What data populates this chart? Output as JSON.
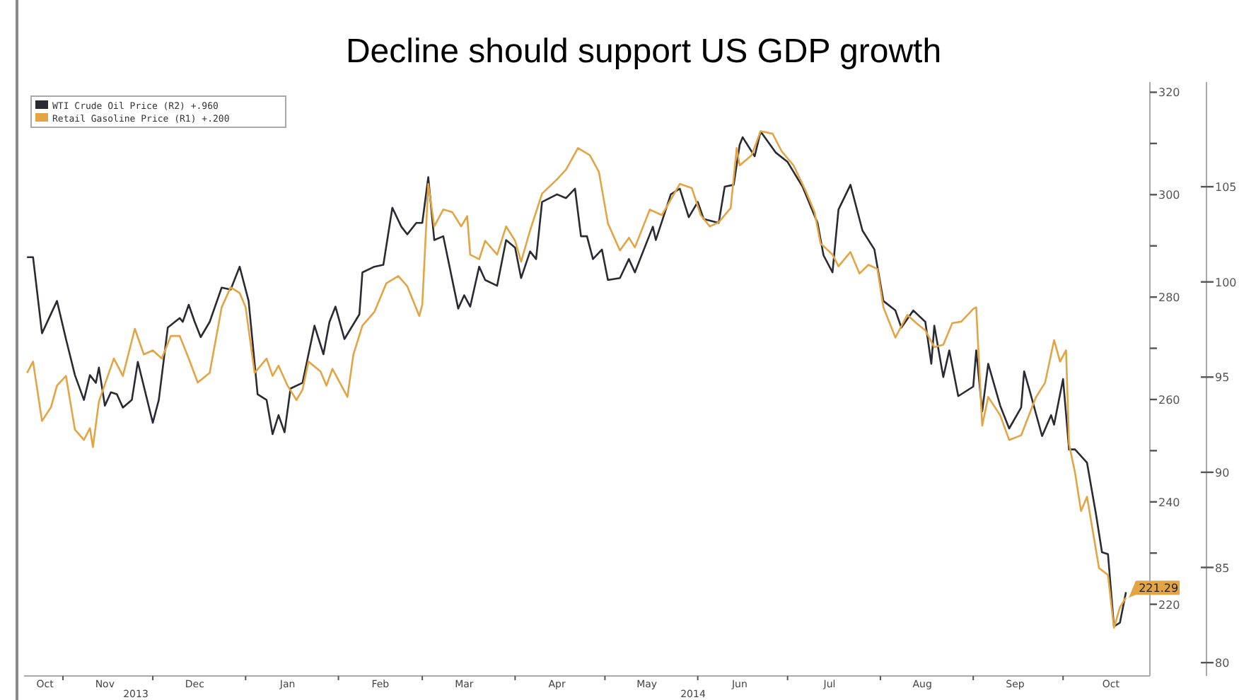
{
  "chart_data": {
    "type": "line",
    "title": "Decline should support US GDP growth",
    "xlim": [
      "2013-10-19",
      "2014-10-30"
    ],
    "xticks": [
      {
        "value": "2013-10-26",
        "label": "Oct"
      },
      {
        "value": "2013-11-01",
        "label": null
      },
      {
        "value": "2013-11-15",
        "label": "Nov"
      },
      {
        "value": "2013-12-01",
        "label": null
      },
      {
        "value": "2013-12-15",
        "label": "Dec"
      },
      {
        "value": "2014-01-01",
        "label": null
      },
      {
        "value": "2014-01-15",
        "label": "Jan"
      },
      {
        "value": "2014-02-01",
        "label": null
      },
      {
        "value": "2014-02-15",
        "label": "Feb"
      },
      {
        "value": "2014-03-01",
        "label": null
      },
      {
        "value": "2014-03-15",
        "label": "Mar"
      },
      {
        "value": "2014-04-01",
        "label": null
      },
      {
        "value": "2014-04-15",
        "label": "Apr"
      },
      {
        "value": "2014-05-01",
        "label": null
      },
      {
        "value": "2014-05-15",
        "label": "May"
      },
      {
        "value": "2014-06-01",
        "label": null
      },
      {
        "value": "2014-06-15",
        "label": "Jun"
      },
      {
        "value": "2014-07-01",
        "label": null
      },
      {
        "value": "2014-07-15",
        "label": "Jul"
      },
      {
        "value": "2014-08-01",
        "label": null
      },
      {
        "value": "2014-08-15",
        "label": "Aug"
      },
      {
        "value": "2014-09-01",
        "label": null
      },
      {
        "value": "2014-09-15",
        "label": "Sep"
      },
      {
        "value": "2014-10-01",
        "label": null
      },
      {
        "value": "2014-10-17",
        "label": "Oct"
      }
    ],
    "ylim": [
      206,
      322
    ],
    "yticks": [
      220,
      {
        "value": 230,
        "label": null
      },
      240,
      {
        "value": 250,
        "label": null
      },
      260,
      {
        "value": 270,
        "label": null
      },
      280,
      {
        "value": 290,
        "label": null
      },
      300,
      {
        "value": 310,
        "label": null
      },
      320
    ],
    "y2lim": [
      79.3,
      110.5
    ],
    "y2ticks": [
      80,
      85,
      90,
      95,
      100,
      105
    ],
    "grid": false,
    "legend": "top left",
    "line_style": "solid",
    "marker": "none",
    "annotations": [
      "2013",
      "2014"
    ],
    "series": [
      {
        "name": "WTI Crude Oil Price (R2) +.960",
        "color": "#2a2a33",
        "axis": "y2",
        "x": [
          "2013-10-20",
          "2013-10-22",
          "2013-10-25",
          "2013-10-30",
          "2013-11-02",
          "2013-11-05",
          "2013-11-08",
          "2013-11-10",
          "2013-11-12",
          "2013-11-13",
          "2013-11-15",
          "2013-11-17",
          "2013-11-19",
          "2013-11-21",
          "2013-11-24",
          "2013-11-26",
          "2013-12-01",
          "2013-12-03",
          "2013-12-06",
          "2013-12-10",
          "2013-12-11",
          "2013-12-13",
          "2013-12-15",
          "2013-12-17",
          "2013-12-20",
          "2013-12-24",
          "2013-12-27",
          "2013-12-30",
          "2014-01-02",
          "2014-01-05",
          "2014-01-08",
          "2014-01-10",
          "2014-01-12",
          "2014-01-14",
          "2014-01-16",
          "2014-01-20",
          "2014-01-24",
          "2014-01-27",
          "2014-01-29",
          "2014-01-31",
          "2014-02-03",
          "2014-02-08",
          "2014-02-09",
          "2014-02-13",
          "2014-02-16",
          "2014-02-19",
          "2014-02-22",
          "2014-02-24",
          "2014-02-27",
          "2014-03-01",
          "2014-03-03",
          "2014-03-05",
          "2014-03-08",
          "2014-03-13",
          "2014-03-15",
          "2014-03-17",
          "2014-03-20",
          "2014-03-22",
          "2014-03-26",
          "2014-03-29",
          "2014-04-01",
          "2014-04-03",
          "2014-04-06",
          "2014-04-08",
          "2014-04-10",
          "2014-04-15",
          "2014-04-18",
          "2014-04-21",
          "2014-04-23",
          "2014-04-25",
          "2014-04-27",
          "2014-04-30",
          "2014-05-02",
          "2014-05-06",
          "2014-05-09",
          "2014-05-11",
          "2014-05-17",
          "2014-05-18",
          "2014-05-23",
          "2014-05-26",
          "2014-05-29",
          "2014-06-01",
          "2014-06-03",
          "2014-06-08",
          "2014-06-10",
          "2014-06-13",
          "2014-06-15",
          "2014-06-16",
          "2014-06-20",
          "2014-06-22",
          "2014-06-27",
          "2014-07-01",
          "2014-07-06",
          "2014-07-11",
          "2014-07-13",
          "2014-07-16",
          "2014-07-18",
          "2014-07-22",
          "2014-07-26",
          "2014-07-30",
          "2014-08-02",
          "2014-08-06",
          "2014-08-08",
          "2014-08-12",
          "2014-08-16",
          "2014-08-18",
          "2014-08-19",
          "2014-08-22",
          "2014-08-24",
          "2014-08-27",
          "2014-09-01",
          "2014-09-02",
          "2014-09-04",
          "2014-09-06",
          "2014-09-10",
          "2014-09-13",
          "2014-09-17",
          "2014-09-18",
          "2014-09-20",
          "2014-09-24",
          "2014-09-27",
          "2014-09-28",
          "2014-10-01",
          "2014-10-03",
          "2014-10-05",
          "2014-10-09",
          "2014-10-12",
          "2014-10-14",
          "2014-10-16",
          "2014-10-18",
          "2014-10-20",
          "2014-10-22"
        ],
        "values": [
          101.3,
          101.3,
          97.3,
          99.0,
          97.0,
          95.1,
          93.8,
          95.1,
          94.7,
          95.5,
          93.5,
          94.2,
          94.1,
          93.4,
          93.8,
          95.8,
          92.6,
          93.8,
          97.6,
          98.1,
          97.9,
          98.8,
          97.9,
          97.1,
          97.9,
          99.7,
          99.6,
          100.8,
          99.0,
          94.1,
          93.8,
          92.0,
          93.0,
          92.1,
          94.4,
          94.7,
          97.7,
          96.2,
          97.9,
          98.7,
          97.0,
          98.3,
          100.5,
          100.8,
          100.9,
          103.9,
          102.9,
          102.5,
          103.1,
          103.1,
          105.5,
          102.2,
          102.4,
          98.6,
          99.3,
          98.7,
          100.8,
          100.1,
          99.8,
          102.2,
          101.8,
          100.2,
          101.6,
          101.2,
          104.2,
          104.6,
          104.4,
          104.9,
          102.4,
          102.4,
          101.2,
          101.7,
          100.1,
          100.2,
          101.2,
          100.5,
          102.9,
          102.2,
          104.6,
          104.9,
          103.4,
          104.2,
          103.3,
          103.1,
          105.0,
          105.1,
          107.2,
          107.6,
          106.6,
          107.9,
          106.8,
          106.3,
          105.0,
          103.1,
          101.4,
          100.5,
          103.8,
          105.1,
          102.7,
          101.7,
          99.0,
          98.5,
          97.6,
          98.5,
          97.9,
          95.7,
          97.7,
          95.0,
          96.4,
          94.0,
          94.5,
          96.4,
          93.2,
          95.7,
          93.5,
          92.3,
          93.4,
          95.3,
          94.2,
          91.9,
          93.0,
          92.5,
          94.9,
          91.2,
          91.2,
          90.5,
          87.8,
          85.8,
          85.7,
          81.9,
          82.1,
          83.7
        ]
      },
      {
        "name": "Retail Gasoline Price (R1) +.200",
        "color": "#e3a444",
        "axis": "y",
        "x": [
          "2013-10-20",
          "2013-10-22",
          "2013-10-25",
          "2013-10-28",
          "2013-10-30",
          "2013-11-02",
          "2013-11-05",
          "2013-11-08",
          "2013-11-10",
          "2013-11-11",
          "2013-11-13",
          "2013-11-18",
          "2013-11-21",
          "2013-11-25",
          "2013-11-28",
          "2013-12-01",
          "2013-12-04",
          "2013-12-07",
          "2013-12-10",
          "2013-12-13",
          "2013-12-16",
          "2013-12-20",
          "2013-12-24",
          "2013-12-27",
          "2013-12-30",
          "2014-01-01",
          "2014-01-04",
          "2014-01-08",
          "2014-01-10",
          "2014-01-12",
          "2014-01-15",
          "2014-01-18",
          "2014-01-20",
          "2014-01-22",
          "2014-01-26",
          "2014-01-28",
          "2014-01-30",
          "2014-02-02",
          "2014-02-04",
          "2014-02-06",
          "2014-02-09",
          "2014-02-13",
          "2014-02-17",
          "2014-02-21",
          "2014-02-24",
          "2014-02-28",
          "2014-03-01",
          "2014-03-03",
          "2014-03-05",
          "2014-03-08",
          "2014-03-11",
          "2014-03-14",
          "2014-03-16",
          "2014-03-17",
          "2014-03-20",
          "2014-03-22",
          "2014-03-26",
          "2014-03-29",
          "2014-04-01",
          "2014-04-03",
          "2014-04-06",
          "2014-04-10",
          "2014-04-15",
          "2014-04-18",
          "2014-04-22",
          "2014-04-26",
          "2014-04-29",
          "2014-05-02",
          "2014-05-06",
          "2014-05-09",
          "2014-05-11",
          "2014-05-16",
          "2014-05-20",
          "2014-05-26",
          "2014-05-30",
          "2014-06-02",
          "2014-06-05",
          "2014-06-08",
          "2014-06-12",
          "2014-06-14",
          "2014-06-15",
          "2014-06-19",
          "2014-06-22",
          "2014-06-26",
          "2014-06-29",
          "2014-07-03",
          "2014-07-07",
          "2014-07-10",
          "2014-07-12",
          "2014-07-16",
          "2014-07-18",
          "2014-07-22",
          "2014-07-25",
          "2014-07-28",
          "2014-07-31",
          "2014-08-02",
          "2014-08-06",
          "2014-08-10",
          "2014-08-13",
          "2014-08-16",
          "2014-08-19",
          "2014-08-22",
          "2014-08-25",
          "2014-08-28",
          "2014-09-01",
          "2014-09-02",
          "2014-09-04",
          "2014-09-06",
          "2014-09-10",
          "2014-09-13",
          "2014-09-17",
          "2014-09-22",
          "2014-09-25",
          "2014-09-28",
          "2014-09-30",
          "2014-10-02",
          "2014-10-03",
          "2014-10-05",
          "2014-10-07",
          "2014-10-09",
          "2014-10-13",
          "2014-10-16",
          "2014-10-18",
          "2014-10-20",
          "2014-10-22"
        ],
        "values": [
          265.2,
          267.4,
          255.8,
          258.5,
          262.7,
          264.6,
          254.1,
          252.1,
          254.4,
          250.7,
          259.6,
          268.0,
          264.6,
          273.8,
          268.8,
          269.6,
          268.0,
          272.4,
          272.4,
          268.0,
          263.3,
          265.2,
          278.0,
          281.9,
          280.8,
          278.0,
          265.2,
          268.0,
          264.6,
          266.6,
          262.7,
          259.9,
          261.9,
          267.4,
          265.5,
          262.7,
          266.0,
          262.7,
          260.5,
          268.8,
          274.4,
          277.1,
          282.7,
          284.1,
          282.1,
          276.3,
          278.5,
          302.1,
          293.8,
          297.1,
          296.6,
          293.8,
          295.8,
          288.3,
          287.4,
          291.0,
          288.3,
          293.8,
          291.0,
          286.9,
          293.0,
          300.2,
          303.0,
          304.9,
          309.1,
          307.7,
          304.4,
          294.4,
          289.1,
          291.6,
          289.7,
          297.1,
          296.0,
          302.1,
          301.3,
          296.0,
          293.8,
          294.6,
          297.4,
          309.1,
          305.7,
          307.7,
          312.4,
          311.9,
          308.5,
          305.7,
          300.8,
          296.6,
          290.5,
          288.3,
          286.0,
          288.8,
          284.6,
          286.3,
          285.5,
          278.0,
          272.1,
          276.5,
          274.9,
          273.5,
          270.2,
          270.7,
          274.9,
          275.2,
          277.7,
          278.0,
          254.9,
          260.5,
          256.9,
          252.1,
          253.0,
          260.5,
          263.3,
          271.6,
          267.4,
          269.6,
          251.3,
          245.7,
          238.2,
          241.0,
          227.1,
          225.7,
          215.4,
          219.4,
          221.29
        ],
        "value_labels": [
          null,
          null,
          null,
          null,
          null,
          null,
          null,
          null,
          null,
          null,
          null,
          null,
          null,
          null,
          null,
          null,
          null,
          null,
          null,
          null,
          null,
          null,
          null,
          null,
          null,
          null,
          null,
          null,
          null,
          null,
          null,
          null,
          null,
          null,
          null,
          null,
          null,
          null,
          null,
          null,
          null,
          null,
          null,
          null,
          null,
          null,
          null,
          null,
          null,
          null,
          null,
          null,
          null,
          null,
          null,
          null,
          null,
          null,
          null,
          null,
          null,
          null,
          null,
          null,
          null,
          null,
          null,
          null,
          null,
          null,
          null,
          null,
          null,
          null,
          null,
          null,
          null,
          null,
          null,
          null,
          null,
          null,
          null,
          null,
          null,
          null,
          null,
          null,
          null,
          null,
          null,
          null,
          null,
          null,
          null,
          null,
          null,
          null,
          null,
          null,
          null,
          null,
          null,
          null,
          null,
          null,
          null,
          null,
          null,
          null,
          null,
          null,
          null,
          null,
          null,
          null,
          null,
          null,
          null,
          null,
          null,
          null,
          null,
          null,
          "221.29"
        ]
      }
    ]
  }
}
